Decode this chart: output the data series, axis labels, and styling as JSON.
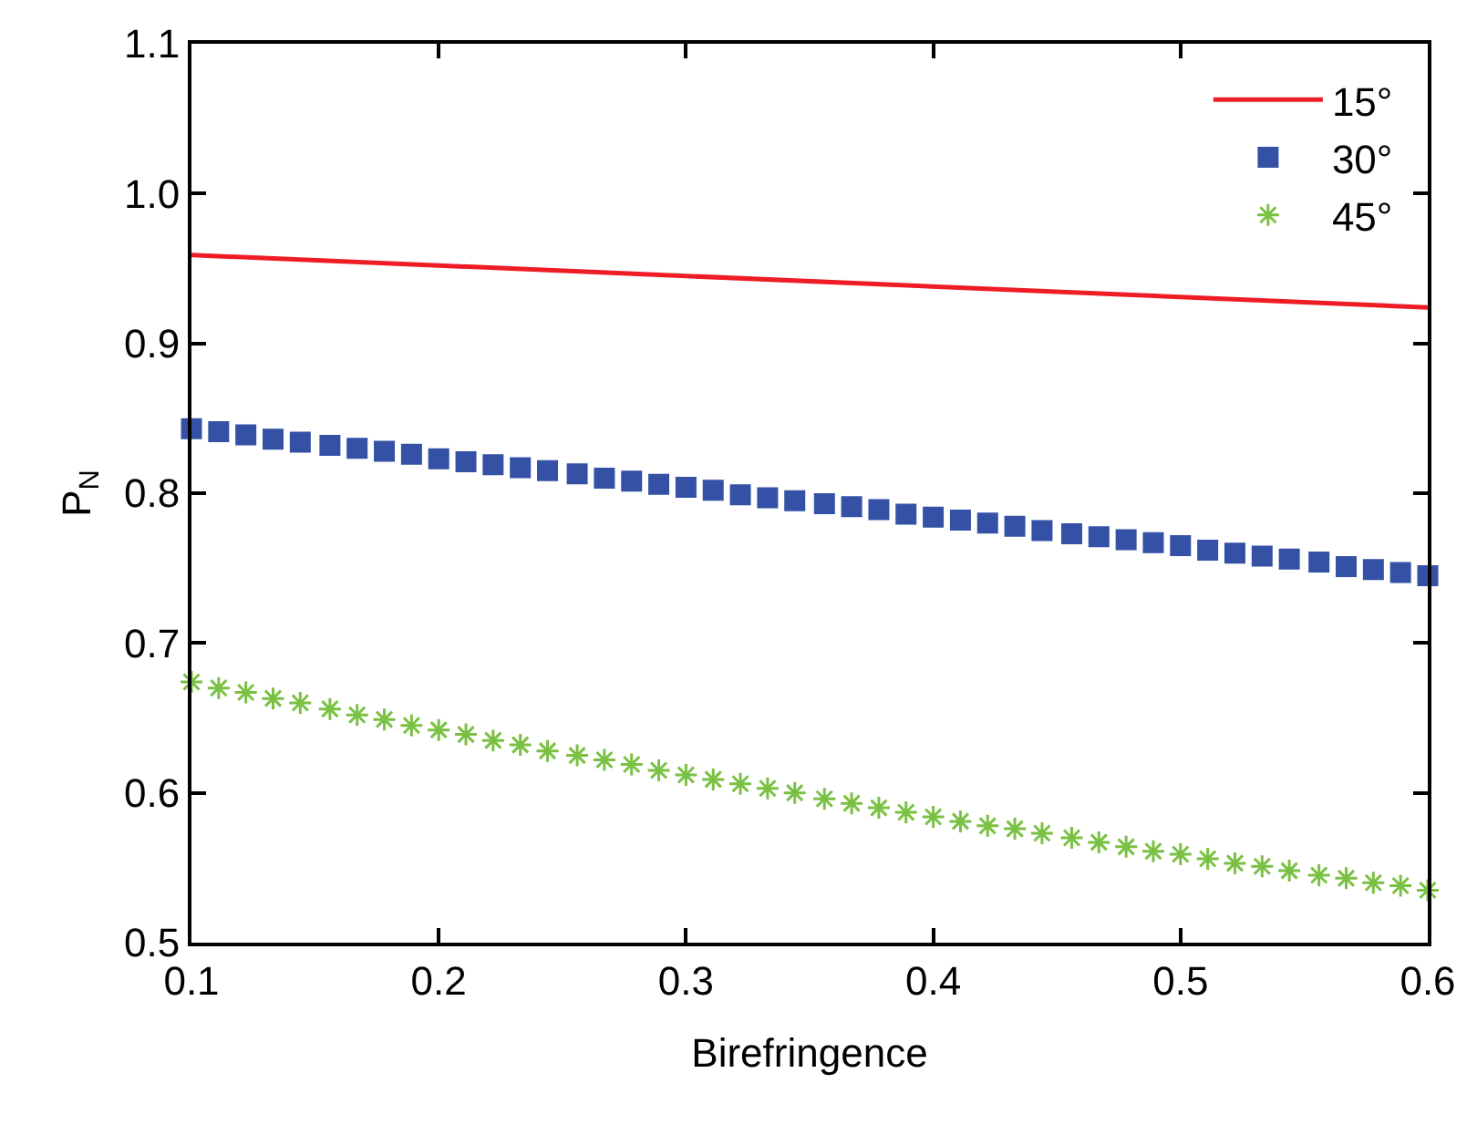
{
  "chart_data": {
    "type": "line",
    "xlabel": "Birefringence",
    "ylabel": "P$_{N}$",
    "xlim": [
      0.1,
      0.6
    ],
    "xticks": [
      0.1,
      0.2,
      0.3,
      0.4,
      0.5,
      0.6
    ],
    "ylim": [
      0.5,
      1.1
    ],
    "yticks": [
      0.5,
      0.6,
      0.7,
      0.8,
      0.9,
      {
        "value": 1.0,
        "label": "1.0"
      },
      1.1
    ],
    "legend": "top right",
    "series": [
      {
        "name": "15°",
        "marker": "none",
        "color": "#ee1c25",
        "x": [
          0.1,
          0.6
        ],
        "values": [
          0.959,
          0.924
        ]
      },
      {
        "name": "30°",
        "type": "scatter",
        "marker": "square",
        "color": "#3451a5",
        "x": [
          0.1,
          0.111,
          0.122,
          0.133,
          0.144,
          0.156,
          0.167,
          0.178,
          0.189,
          0.2,
          0.211,
          0.222,
          0.233,
          0.244,
          0.256,
          0.267,
          0.278,
          0.289,
          0.3,
          0.311,
          0.322,
          0.333,
          0.344,
          0.356,
          0.367,
          0.378,
          0.389,
          0.4,
          0.411,
          0.422,
          0.433,
          0.444,
          0.456,
          0.467,
          0.478,
          0.489,
          0.5,
          0.511,
          0.522,
          0.533,
          0.544,
          0.556,
          0.567,
          0.578,
          0.589,
          0.6
        ],
        "values": [
          0.843,
          0.841,
          0.839,
          0.836,
          0.834,
          0.832,
          0.83,
          0.828,
          0.826,
          0.823,
          0.821,
          0.819,
          0.817,
          0.815,
          0.813,
          0.81,
          0.808,
          0.806,
          0.804,
          0.802,
          0.799,
          0.797,
          0.795,
          0.793,
          0.791,
          0.789,
          0.786,
          0.784,
          0.782,
          0.78,
          0.778,
          0.775,
          0.773,
          0.771,
          0.769,
          0.767,
          0.765,
          0.762,
          0.76,
          0.758,
          0.756,
          0.754,
          0.751,
          0.749,
          0.747,
          0.745
        ]
      },
      {
        "name": "45°",
        "type": "scatter",
        "marker": "cross",
        "color": "#7ac143",
        "x": [
          0.1,
          0.111,
          0.122,
          0.133,
          0.144,
          0.156,
          0.167,
          0.178,
          0.189,
          0.2,
          0.211,
          0.222,
          0.233,
          0.244,
          0.256,
          0.267,
          0.278,
          0.289,
          0.3,
          0.311,
          0.322,
          0.333,
          0.344,
          0.356,
          0.367,
          0.378,
          0.389,
          0.4,
          0.411,
          0.422,
          0.433,
          0.444,
          0.456,
          0.467,
          0.478,
          0.489,
          0.5,
          0.511,
          0.522,
          0.533,
          0.544,
          0.556,
          0.567,
          0.578,
          0.589,
          0.6
        ],
        "values": [
          0.674,
          0.67,
          0.667,
          0.663,
          0.66,
          0.656,
          0.652,
          0.649,
          0.645,
          0.642,
          0.639,
          0.635,
          0.632,
          0.628,
          0.625,
          0.622,
          0.619,
          0.615,
          0.612,
          0.609,
          0.606,
          0.603,
          0.6,
          0.596,
          0.593,
          0.59,
          0.587,
          0.584,
          0.581,
          0.578,
          0.576,
          0.573,
          0.57,
          0.567,
          0.564,
          0.561,
          0.559,
          0.556,
          0.553,
          0.551,
          0.548,
          0.545,
          0.543,
          0.54,
          0.538,
          0.535
        ]
      }
    ]
  }
}
